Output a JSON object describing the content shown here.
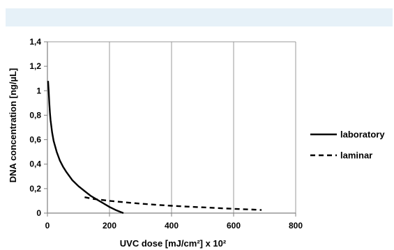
{
  "chart_data": {
    "type": "line",
    "title": "",
    "xlabel": "UVC dose [mJ/cm²] x 10²",
    "ylabel": "DNA concentration [ng/µL]",
    "xlim": [
      0,
      800
    ],
    "ylim": [
      0,
      1.4
    ],
    "x_ticks": [
      "0",
      "200",
      "400",
      "600",
      "800"
    ],
    "y_ticks": [
      "0",
      "0,2",
      "0,4",
      "0,6",
      "0,8",
      "1",
      "1,2",
      "1,4"
    ],
    "grid": "vertical",
    "legend_position": "right",
    "series": [
      {
        "name": "laboratory",
        "style": "solid",
        "color": "#000000",
        "x": [
          2,
          4,
          6,
          8,
          10,
          15,
          20,
          30,
          40,
          50,
          60,
          80,
          100,
          120,
          140,
          160,
          180,
          200,
          220,
          245
        ],
        "y": [
          1.08,
          1.0,
          0.9,
          0.82,
          0.76,
          0.66,
          0.59,
          0.5,
          0.43,
          0.38,
          0.34,
          0.27,
          0.22,
          0.18,
          0.14,
          0.11,
          0.08,
          0.05,
          0.025,
          0.0
        ]
      },
      {
        "name": "laminar",
        "style": "dashed",
        "color": "#000000",
        "x": [
          120,
          150,
          200,
          250,
          300,
          350,
          400,
          450,
          500,
          550,
          600,
          650,
          690
        ],
        "y": [
          0.13,
          0.115,
          0.1,
          0.088,
          0.077,
          0.068,
          0.06,
          0.053,
          0.047,
          0.041,
          0.035,
          0.03,
          0.025
        ]
      }
    ]
  }
}
